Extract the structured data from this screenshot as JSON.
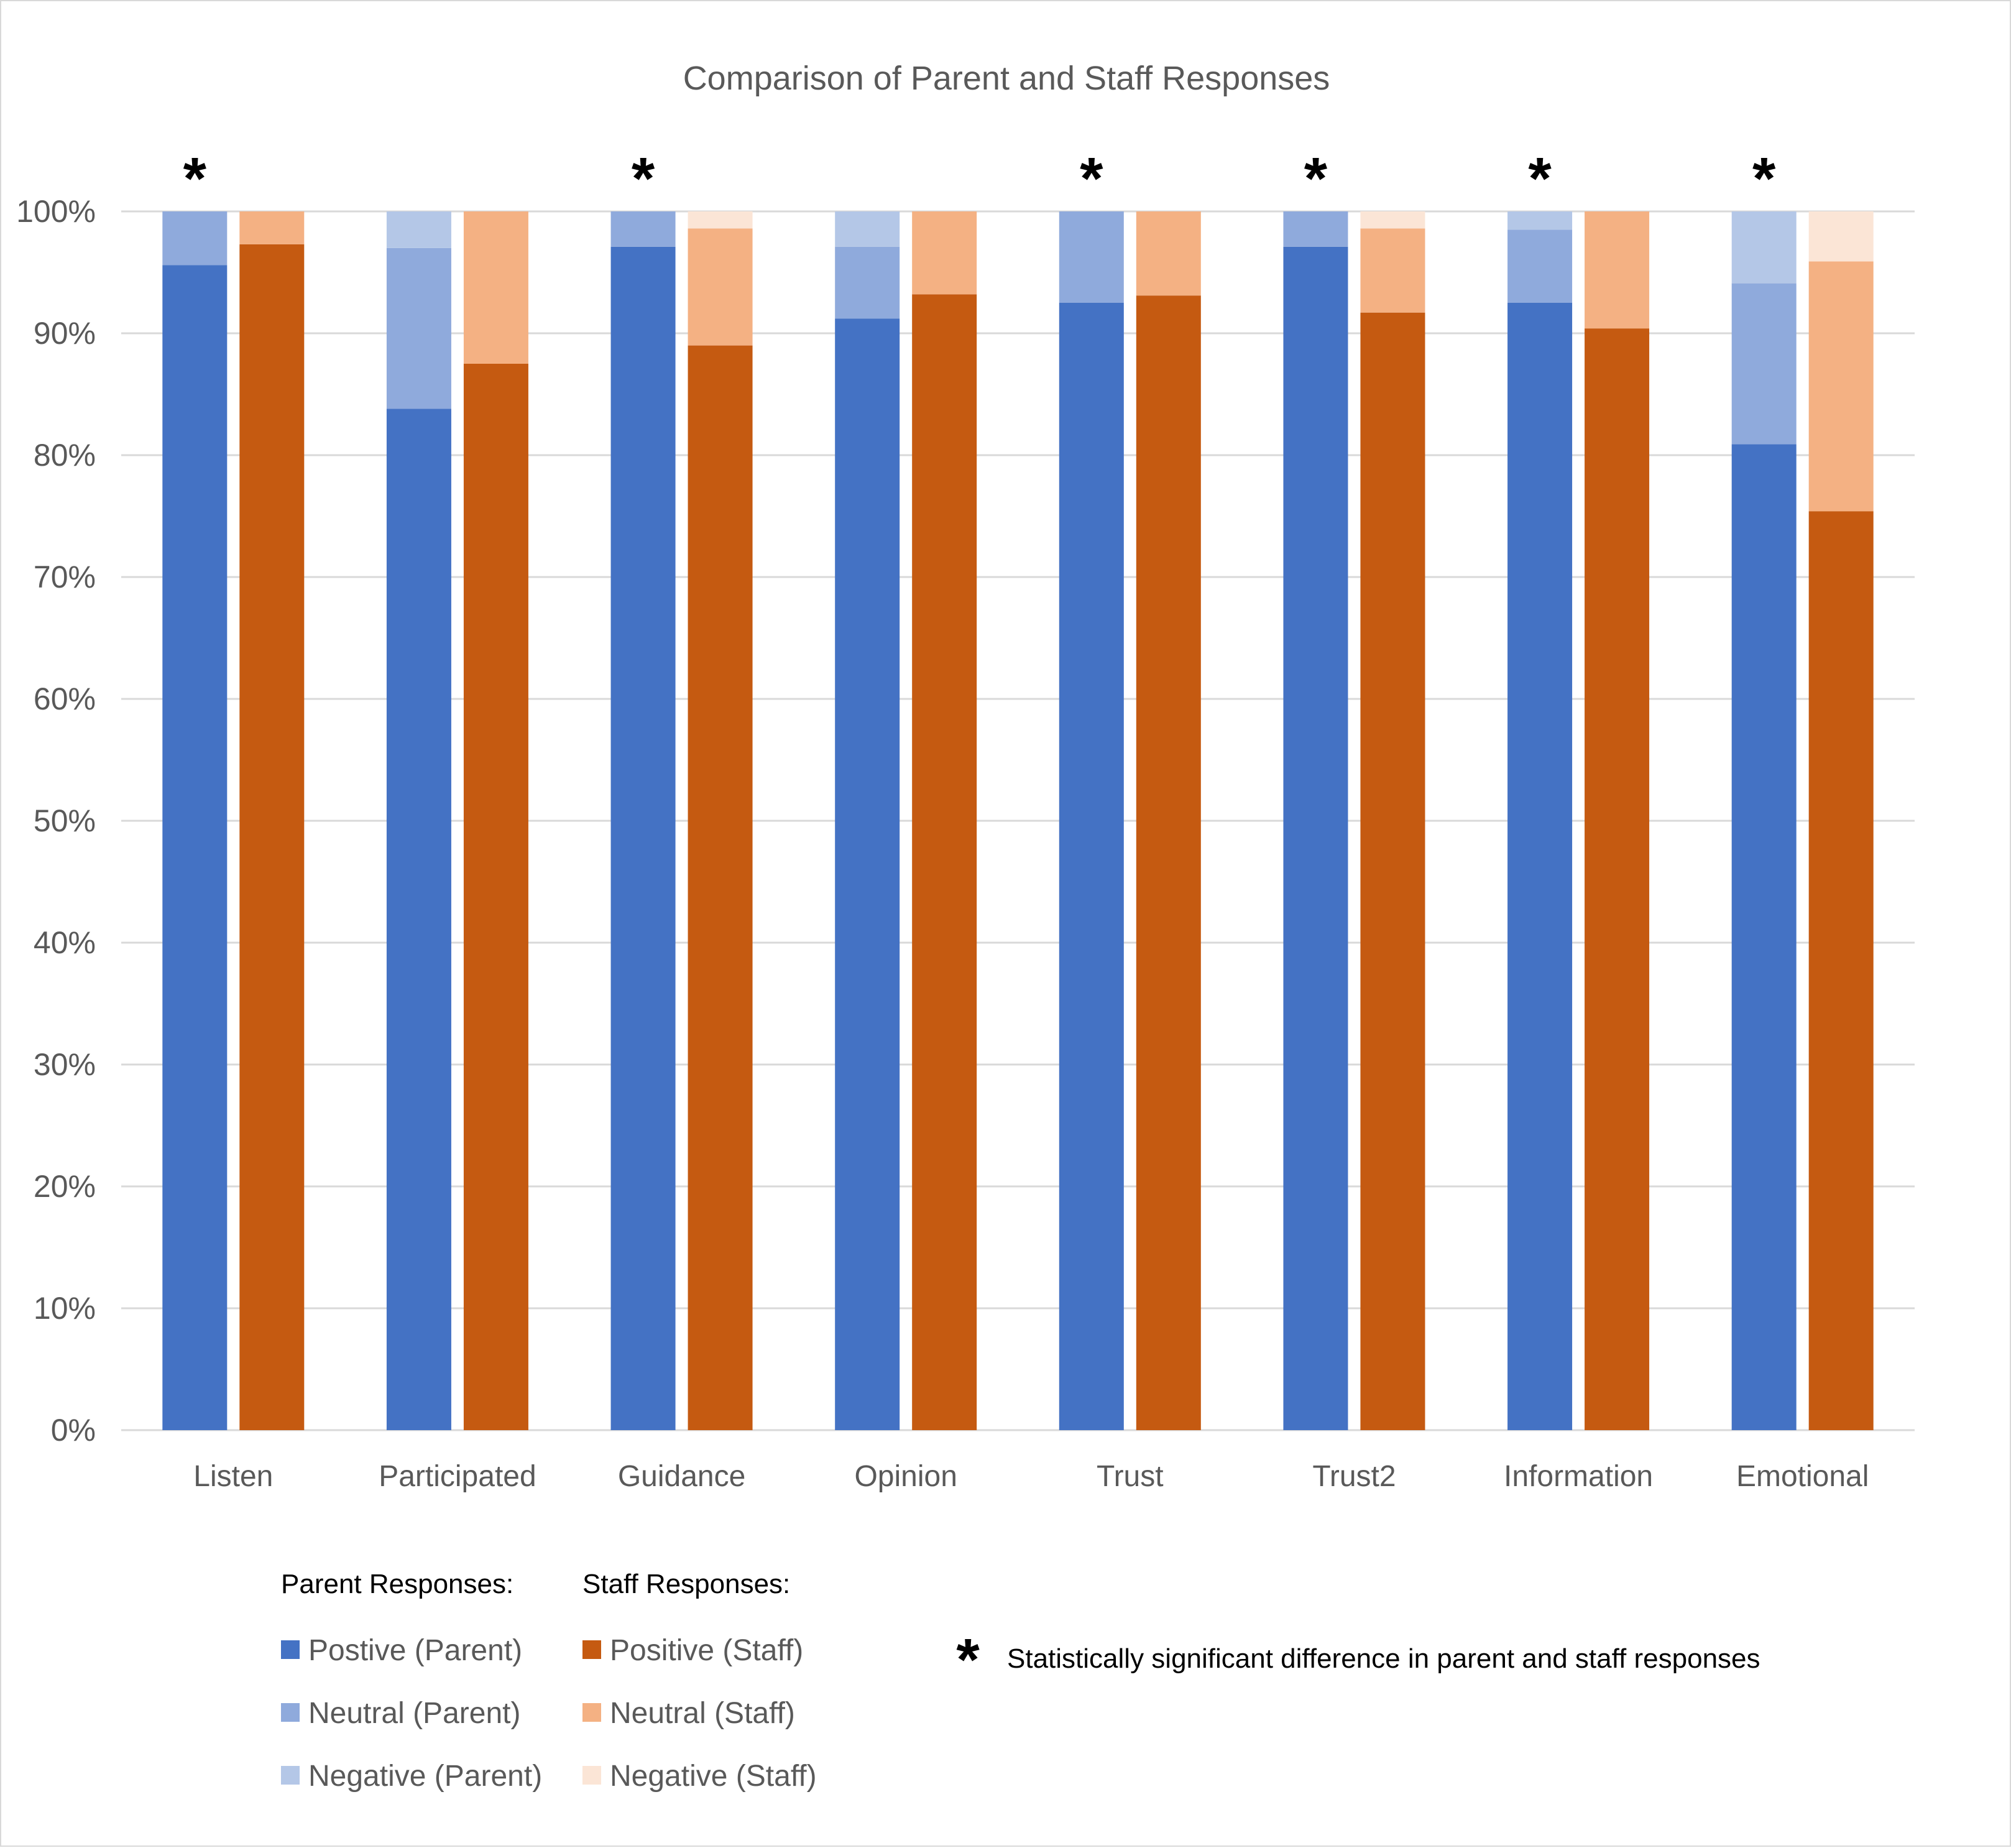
{
  "chart_data": {
    "type": "bar",
    "stacked": true,
    "title": "Comparison of Parent and Staff Responses",
    "categories": [
      "Listen",
      "Participated",
      "Guidance",
      "Opinion",
      "Trust",
      "Trust2",
      "Information",
      "Emotional"
    ],
    "ylim": [
      0,
      100
    ],
    "y_ticks": [
      "0%",
      "10%",
      "20%",
      "30%",
      "40%",
      "50%",
      "60%",
      "70%",
      "80%",
      "90%",
      "100%"
    ],
    "grid": true,
    "significant": [
      true,
      false,
      true,
      false,
      true,
      true,
      true,
      true
    ],
    "significance_symbol": "*",
    "groups": [
      {
        "name": "Parent Responses:",
        "series": [
          {
            "name": "Postive (Parent)",
            "color": "#4472c4",
            "values": [
              95.6,
              83.8,
              97.1,
              91.2,
              92.5,
              97.1,
              92.5,
              80.9
            ]
          },
          {
            "name": "Neutral (Parent)",
            "color": "#8faadc",
            "values": [
              4.4,
              13.2,
              2.9,
              5.9,
              7.5,
              2.9,
              6.0,
              13.2
            ]
          },
          {
            "name": "Negative (Parent)",
            "color": "#b4c7e7",
            "values": [
              0,
              3.0,
              0,
              2.9,
              0,
              0,
              1.5,
              5.9
            ]
          }
        ]
      },
      {
        "name": "Staff Responses:",
        "series": [
          {
            "name": "Positive (Staff)",
            "color": "#c55a11",
            "values": [
              97.3,
              87.5,
              89.0,
              93.2,
              93.1,
              91.7,
              90.4,
              75.4
            ]
          },
          {
            "name": "Neutral (Staff)",
            "color": "#f4b183",
            "values": [
              2.7,
              12.5,
              9.6,
              6.8,
              6.9,
              6.9,
              9.6,
              20.5
            ]
          },
          {
            "name": "Negative (Staff)",
            "color": "#fbe5d6",
            "values": [
              0,
              0,
              1.4,
              0,
              0,
              1.4,
              0,
              4.1
            ]
          }
        ]
      }
    ],
    "note": "Statistically significant difference in parent and staff responses"
  }
}
